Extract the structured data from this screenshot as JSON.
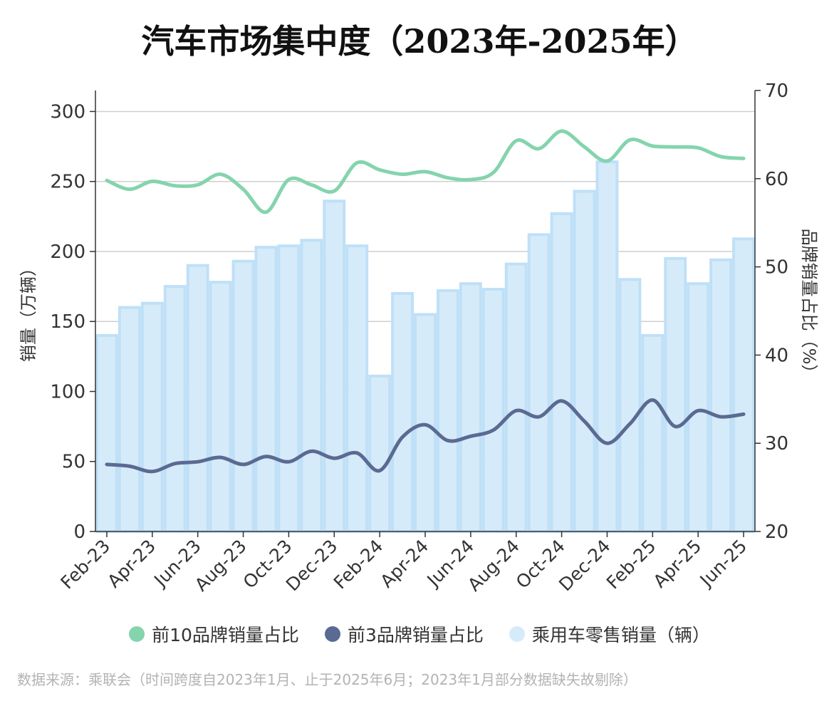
{
  "chart_data": {
    "type": "bar",
    "title": "汽车市场集中度（2023年-2025年）",
    "ylabel": "销量（万辆）",
    "y2label": "品牌销量占比（%）",
    "ylim": [
      0,
      315
    ],
    "y2lim": [
      20,
      70
    ],
    "yticks": [
      "0",
      "50",
      "100",
      "150",
      "200",
      "250",
      "300"
    ],
    "y2ticks": [
      "20",
      "30",
      "40",
      "50",
      "60",
      "70"
    ],
    "grid": true,
    "legend_position": "bottom",
    "categories": [
      "Feb-23",
      "Mar-23",
      "Apr-23",
      "May-23",
      "Jun-23",
      "Jul-23",
      "Aug-23",
      "Sep-23",
      "Oct-23",
      "Nov-23",
      "Dec-23",
      "Jan-24",
      "Feb-24",
      "Mar-24",
      "Apr-24",
      "May-24",
      "Jun-24",
      "Jul-24",
      "Aug-24",
      "Sep-24",
      "Oct-24",
      "Nov-24",
      "Dec-24",
      "Jan-25",
      "Feb-25",
      "Mar-25",
      "Apr-25",
      "May-25",
      "Jun-25"
    ],
    "xtick_labels": [
      "Feb-23",
      "Apr-23",
      "Jun-23",
      "Aug-23",
      "Oct-23",
      "Dec-23",
      "Feb-24",
      "Apr-24",
      "Jun-24",
      "Aug-24",
      "Oct-24",
      "Dec-24",
      "Feb-25",
      "Apr-25",
      "Jun-25"
    ],
    "series": [
      {
        "name": "乘用车零售销量（辆）",
        "axis": "left",
        "color": "#d6ebf9",
        "values": [
          140,
          160,
          163,
          175,
          190,
          178,
          193,
          203,
          204,
          208,
          236,
          204,
          111,
          170,
          155,
          172,
          177,
          173,
          191,
          212,
          227,
          243,
          264,
          180,
          140,
          195,
          177,
          194,
          209
        ]
      },
      {
        "name": "前10品牌销量占比",
        "axis": "right",
        "color": "#84d4ae",
        "values": [
          59.8,
          58.8,
          59.7,
          59.2,
          59.3,
          60.5,
          58.8,
          56.2,
          59.9,
          59.3,
          58.6,
          61.8,
          61.0,
          60.5,
          60.8,
          60.1,
          59.9,
          60.7,
          64.3,
          63.4,
          65.4,
          63.6,
          62.0,
          64.4,
          63.7,
          63.6,
          63.5,
          62.5,
          62.3
        ]
      },
      {
        "name": "前3品牌销量占比",
        "axis": "right",
        "color": "#5b6a92",
        "values": [
          27.6,
          27.4,
          26.8,
          27.7,
          27.9,
          28.4,
          27.6,
          28.5,
          27.9,
          29.1,
          28.3,
          28.9,
          26.9,
          30.7,
          32.1,
          30.3,
          30.8,
          31.5,
          33.7,
          33.0,
          34.8,
          32.5,
          30.0,
          32.2,
          34.9,
          31.9,
          33.7,
          33.0,
          33.3
        ]
      }
    ]
  },
  "legend": [
    {
      "label": "前10品牌销量占比",
      "color": "#84d4ae"
    },
    {
      "label": "前3品牌销量占比",
      "color": "#5b6a92"
    },
    {
      "label": "乘用车零售销量（辆）",
      "color": "#d6ebf9"
    }
  ],
  "source_note": "数据来源：乘联会（时间跨度自2023年1月、止于2025年6月；2023年1月部分数据缺失故剔除）"
}
